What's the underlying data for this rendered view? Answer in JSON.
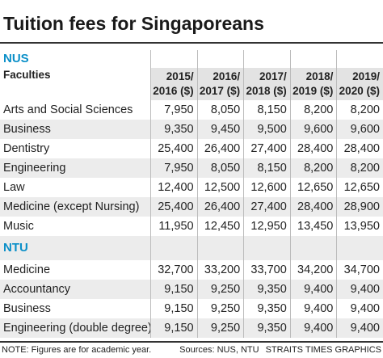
{
  "title": "Tuition fees for Singaporeans",
  "header": {
    "label": "Faculties",
    "columns": [
      "2015/ 2016 ($)",
      "2016/ 2017 ($)",
      "2017/ 2018 ($)",
      "2018/ 2019 ($)",
      "2019/ 2020 ($)"
    ]
  },
  "sections": [
    {
      "name": "NUS",
      "rows": [
        {
          "label": "Arts and Social Sciences",
          "values": [
            "7,950",
            "8,050",
            "8,150",
            "8,200",
            "8,200"
          ]
        },
        {
          "label": "Business",
          "values": [
            "9,350",
            "9,450",
            "9,500",
            "9,600",
            "9,600"
          ]
        },
        {
          "label": "Dentistry",
          "values": [
            "25,400",
            "26,400",
            "27,400",
            "28,400",
            "28,400"
          ]
        },
        {
          "label": "Engineering",
          "values": [
            "7,950",
            "8,050",
            "8,150",
            "8,200",
            "8,200"
          ]
        },
        {
          "label": "Law",
          "values": [
            "12,400",
            "12,500",
            "12,600",
            "12,650",
            "12,650"
          ]
        },
        {
          "label": "Medicine (except Nursing)",
          "values": [
            "25,400",
            "26,400",
            "27,400",
            "28,400",
            "28,900"
          ]
        },
        {
          "label": "Music",
          "values": [
            "11,950",
            "12,450",
            "12,950",
            "13,450",
            "13,950"
          ]
        }
      ]
    },
    {
      "name": "NTU",
      "rows": [
        {
          "label": "Medicine",
          "values": [
            "32,700",
            "33,200",
            "33,700",
            "34,200",
            "34,700"
          ]
        },
        {
          "label": "Accountancy",
          "values": [
            "9,150",
            "9,250",
            "9,350",
            "9,400",
            "9,400"
          ]
        },
        {
          "label": "Business",
          "values": [
            "9,150",
            "9,250",
            "9,350",
            "9,400",
            "9,400"
          ]
        },
        {
          "label": "Engineering (double degree)",
          "values": [
            "9,150",
            "9,250",
            "9,350",
            "9,400",
            "9,400"
          ]
        }
      ]
    }
  ],
  "note": "NOTE: Figures are for academic year.",
  "source": "Sources: NUS, NTU",
  "credit": "STRAITS TIMES GRAPHICS"
}
